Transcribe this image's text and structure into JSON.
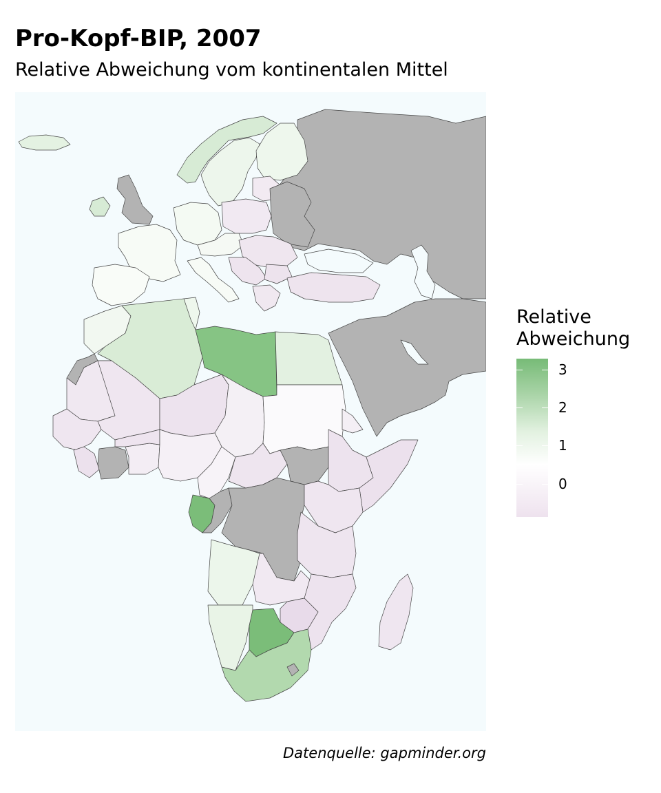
{
  "title": "Pro-Kopf-BIP, 2007",
  "subtitle": "Relative Abweichung vom kontinentalen Mittel",
  "caption": "Datenquelle: gapminder.org",
  "legend": {
    "title_line1": "Relative",
    "title_line2": "Abweichung",
    "ticks": [
      "3",
      "2",
      "1",
      "0"
    ],
    "range": [
      -0.9,
      3.3
    ],
    "low_color": "#eee2ee",
    "mid_color": "#ffffff",
    "high_color": "#77bb77"
  },
  "colors": {
    "ocean": "#f4fbfd",
    "no_data": "#b3b3b3",
    "border": "#444444"
  }
}
